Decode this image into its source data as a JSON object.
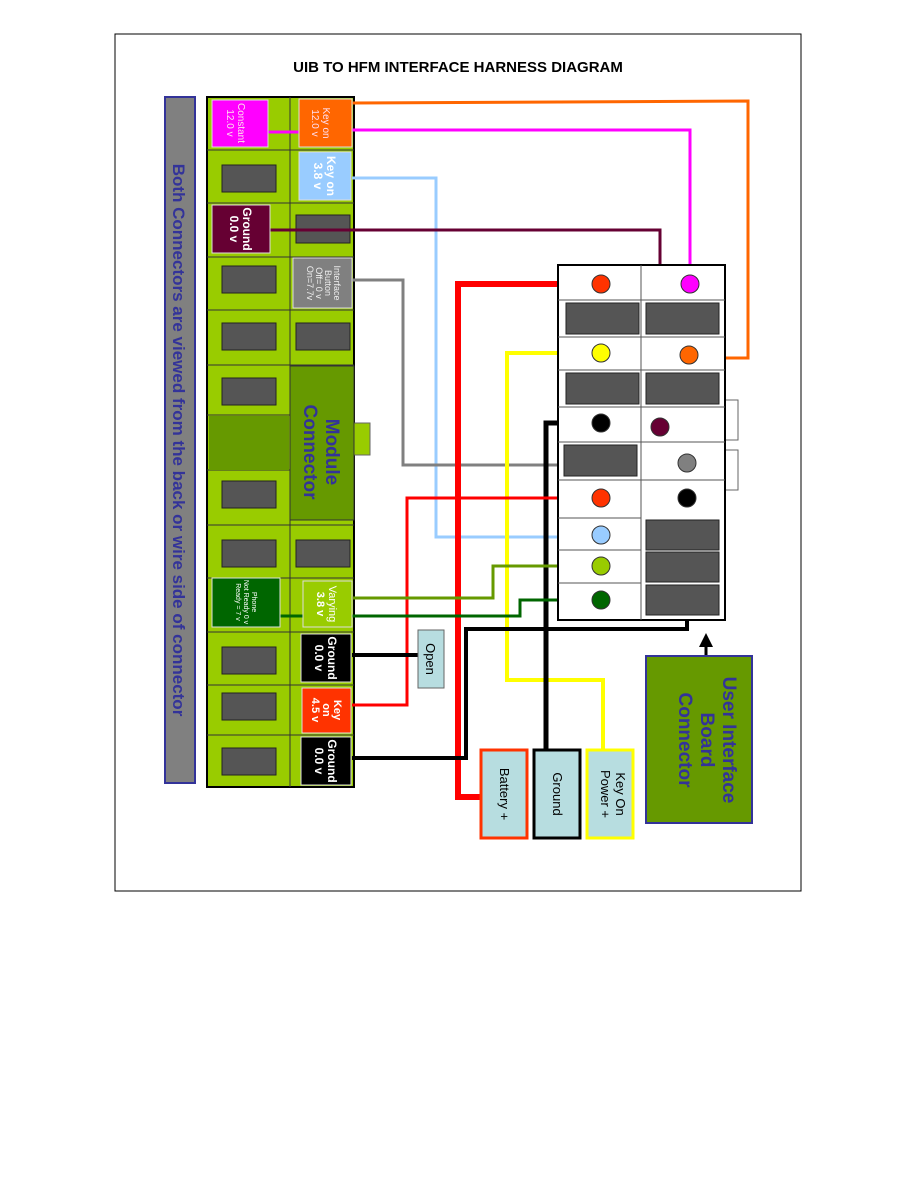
{
  "title": "UIB TO HFM INTERFACE HARNESS DIAGRAM",
  "side_caption": "Both Connectors are viewed from the back or wire side of connector",
  "module_connector": {
    "label_line1": "Module",
    "label_line2": "Connector",
    "pins": {
      "key_on_12": [
        "Key on",
        "12.0 v"
      ],
      "constant_12": [
        "Constant",
        "12.0 v"
      ],
      "key_on_38": [
        "Key on",
        "3.8 v"
      ],
      "ground_maroon": [
        "Ground",
        "0.0 v"
      ],
      "interface_button": [
        "Interface",
        "Button",
        "Off= 0 v",
        "On=7.7v"
      ],
      "phone": [
        "Phone",
        "Not Ready 0 v",
        "Ready = 7 v"
      ],
      "varying": [
        "Varying",
        "3.8 v"
      ],
      "ground_1": [
        "Ground",
        "0.0 v"
      ],
      "key_on_45": [
        "Key",
        "on",
        "4.5 v"
      ],
      "ground_2": [
        "Ground",
        "0.0 v"
      ]
    }
  },
  "uib_connector": {
    "label_lines": [
      "User Interface",
      "Board",
      "Connector"
    ]
  },
  "open_label": "Open",
  "terminals": {
    "battery": "Battery +",
    "ground": "Ground",
    "key_on_power": [
      "Key On",
      "Power +"
    ]
  },
  "colors": {
    "connector_green": "#99cc00",
    "dark_green": "#669900",
    "navy": "#333399",
    "orange": "#ff6600",
    "magenta": "#ff00ff",
    "light_blue": "#99ccff",
    "maroon": "#660033",
    "gray": "#808080",
    "red": "#ff0000",
    "yellow": "#ffff00",
    "yellow_green": "#669900",
    "dark_wire_green": "#006600",
    "black": "#000000",
    "terminal_bg": "#b7dde0"
  }
}
